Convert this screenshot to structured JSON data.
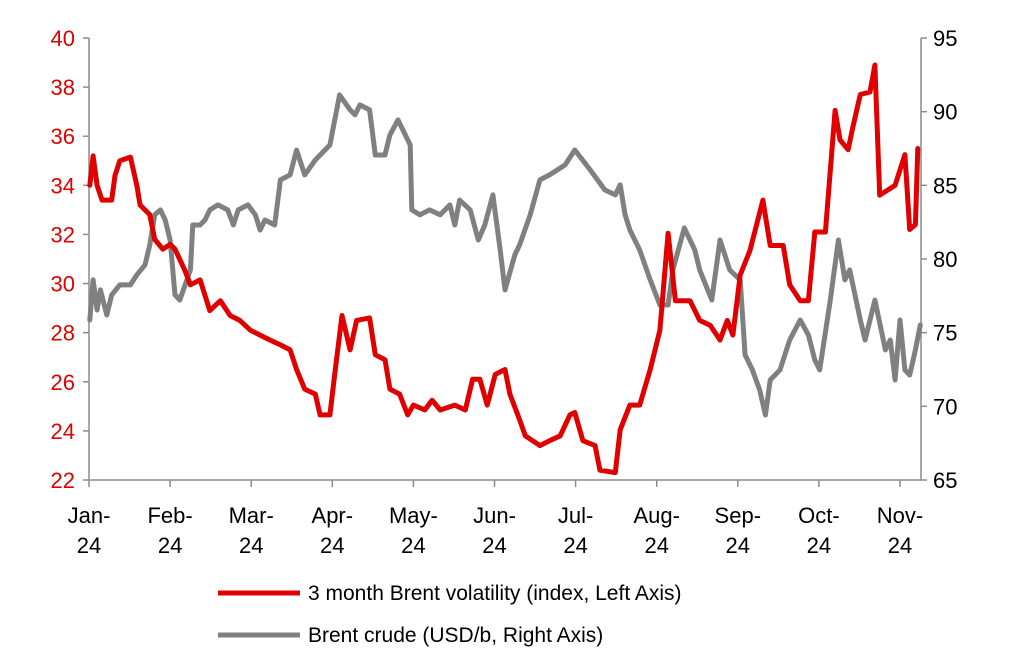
{
  "chart_data": {
    "type": "line",
    "title": "",
    "x_unit": "months since Jan-24",
    "x_tick_labels": [
      [
        "Jan-",
        "24"
      ],
      [
        "Feb-",
        "24"
      ],
      [
        "Mar-",
        "24"
      ],
      [
        "Apr-",
        "24"
      ],
      [
        "May-",
        "24"
      ],
      [
        "Jun-",
        "24"
      ],
      [
        "Jul-",
        "24"
      ],
      [
        "Aug-",
        "24"
      ],
      [
        "Sep-",
        "24"
      ],
      [
        "Oct-",
        "24"
      ],
      [
        "Nov-",
        "24"
      ]
    ],
    "y_left": {
      "range": [
        22,
        40
      ],
      "step": 2,
      "ticks": [
        "22",
        "24",
        "26",
        "28",
        "30",
        "32",
        "34",
        "36",
        "38",
        "40"
      ],
      "color": "#e00000"
    },
    "y_right": {
      "range": [
        65,
        95
      ],
      "step": 5,
      "ticks": [
        "65",
        "70",
        "75",
        "80",
        "85",
        "90",
        "95"
      ],
      "color": "#000000"
    },
    "grid": false,
    "legend_position": "bottom",
    "series": [
      {
        "name": "3 month Brent volatility (index, Left Axis)",
        "axis": "left",
        "color": "#e00000",
        "points": [
          [
            0.01,
            34.0
          ],
          [
            0.05,
            35.2
          ],
          [
            0.1,
            34.0
          ],
          [
            0.16,
            33.4
          ],
          [
            0.28,
            33.4
          ],
          [
            0.32,
            34.4
          ],
          [
            0.38,
            35.0
          ],
          [
            0.51,
            35.15
          ],
          [
            0.59,
            34.0
          ],
          [
            0.63,
            33.2
          ],
          [
            0.75,
            32.8
          ],
          [
            0.81,
            31.8
          ],
          [
            0.91,
            31.4
          ],
          [
            1.0,
            31.6
          ],
          [
            1.06,
            31.4
          ],
          [
            1.18,
            30.55
          ],
          [
            1.25,
            29.95
          ],
          [
            1.37,
            30.15
          ],
          [
            1.49,
            28.9
          ],
          [
            1.62,
            29.3
          ],
          [
            1.74,
            28.7
          ],
          [
            1.86,
            28.5
          ],
          [
            1.99,
            28.1
          ],
          [
            2.11,
            27.9
          ],
          [
            2.23,
            27.7
          ],
          [
            2.36,
            27.5
          ],
          [
            2.48,
            27.3
          ],
          [
            2.56,
            26.5
          ],
          [
            2.66,
            25.7
          ],
          [
            2.79,
            25.5
          ],
          [
            2.85,
            24.65
          ],
          [
            2.97,
            24.65
          ],
          [
            3.03,
            26.3
          ],
          [
            3.12,
            28.7
          ],
          [
            3.22,
            27.3
          ],
          [
            3.3,
            28.5
          ],
          [
            3.46,
            28.6
          ],
          [
            3.53,
            27.1
          ],
          [
            3.65,
            26.9
          ],
          [
            3.71,
            25.7
          ],
          [
            3.83,
            25.5
          ],
          [
            3.93,
            24.65
          ],
          [
            4.0,
            25.05
          ],
          [
            4.14,
            24.85
          ],
          [
            4.23,
            25.25
          ],
          [
            4.33,
            24.85
          ],
          [
            4.51,
            25.05
          ],
          [
            4.64,
            24.85
          ],
          [
            4.73,
            26.1
          ],
          [
            4.82,
            26.1
          ],
          [
            4.91,
            25.05
          ],
          [
            5.01,
            26.3
          ],
          [
            5.13,
            26.5
          ],
          [
            5.19,
            25.5
          ],
          [
            5.31,
            24.45
          ],
          [
            5.38,
            23.8
          ],
          [
            5.56,
            23.4
          ],
          [
            5.68,
            23.6
          ],
          [
            5.81,
            23.8
          ],
          [
            5.93,
            24.65
          ],
          [
            5.99,
            24.75
          ],
          [
            6.09,
            23.6
          ],
          [
            6.24,
            23.4
          ],
          [
            6.3,
            22.4
          ],
          [
            6.49,
            22.3
          ],
          [
            6.55,
            24.05
          ],
          [
            6.67,
            25.05
          ],
          [
            6.79,
            25.05
          ],
          [
            6.92,
            26.5
          ],
          [
            7.04,
            28.1
          ],
          [
            7.14,
            32.05
          ],
          [
            7.23,
            29.3
          ],
          [
            7.41,
            29.3
          ],
          [
            7.53,
            28.5
          ],
          [
            7.66,
            28.3
          ],
          [
            7.78,
            27.7
          ],
          [
            7.87,
            28.5
          ],
          [
            7.94,
            27.9
          ],
          [
            8.03,
            30.35
          ],
          [
            8.15,
            31.35
          ],
          [
            8.31,
            33.4
          ],
          [
            8.4,
            31.55
          ],
          [
            8.56,
            31.55
          ],
          [
            8.64,
            29.95
          ],
          [
            8.77,
            29.3
          ],
          [
            8.87,
            29.3
          ],
          [
            8.95,
            32.1
          ],
          [
            9.08,
            32.1
          ],
          [
            9.2,
            37.05
          ],
          [
            9.26,
            35.85
          ],
          [
            9.36,
            35.45
          ],
          [
            9.41,
            36.25
          ],
          [
            9.51,
            37.7
          ],
          [
            9.63,
            37.8
          ],
          [
            9.69,
            38.9
          ],
          [
            9.75,
            33.6
          ],
          [
            9.94,
            34.0
          ],
          [
            10.06,
            35.25
          ],
          [
            10.12,
            32.2
          ],
          [
            10.19,
            32.4
          ],
          [
            10.22,
            35.5
          ]
        ]
      },
      {
        "name": "Brent crude (USD/b, Right Axis)",
        "axis": "right",
        "color": "#808080",
        "points": [
          [
            0.01,
            75.86
          ],
          [
            0.05,
            78.58
          ],
          [
            0.1,
            76.54
          ],
          [
            0.14,
            77.9
          ],
          [
            0.22,
            76.2
          ],
          [
            0.28,
            77.56
          ],
          [
            0.38,
            78.24
          ],
          [
            0.51,
            78.24
          ],
          [
            0.59,
            78.92
          ],
          [
            0.69,
            79.6
          ],
          [
            0.75,
            80.95
          ],
          [
            0.81,
            83.0
          ],
          [
            0.88,
            83.33
          ],
          [
            0.94,
            82.65
          ],
          [
            1.0,
            81.29
          ],
          [
            1.06,
            77.56
          ],
          [
            1.12,
            77.22
          ],
          [
            1.25,
            79.26
          ],
          [
            1.28,
            82.31
          ],
          [
            1.37,
            82.31
          ],
          [
            1.43,
            82.65
          ],
          [
            1.49,
            83.33
          ],
          [
            1.59,
            83.67
          ],
          [
            1.71,
            83.33
          ],
          [
            1.78,
            82.31
          ],
          [
            1.84,
            83.33
          ],
          [
            1.96,
            83.67
          ],
          [
            2.05,
            83.0
          ],
          [
            2.11,
            81.97
          ],
          [
            2.17,
            82.65
          ],
          [
            2.29,
            82.31
          ],
          [
            2.36,
            85.37
          ],
          [
            2.48,
            85.71
          ],
          [
            2.56,
            87.4
          ],
          [
            2.66,
            85.71
          ],
          [
            2.79,
            86.72
          ],
          [
            2.91,
            87.4
          ],
          [
            2.97,
            87.74
          ],
          [
            3.09,
            91.14
          ],
          [
            3.22,
            90.12
          ],
          [
            3.28,
            89.78
          ],
          [
            3.34,
            90.46
          ],
          [
            3.46,
            90.12
          ],
          [
            3.53,
            87.06
          ],
          [
            3.65,
            87.06
          ],
          [
            3.71,
            88.42
          ],
          [
            3.81,
            89.44
          ],
          [
            3.96,
            87.74
          ],
          [
            3.98,
            83.33
          ],
          [
            4.08,
            83.0
          ],
          [
            4.2,
            83.33
          ],
          [
            4.33,
            83.0
          ],
          [
            4.45,
            83.67
          ],
          [
            4.51,
            82.31
          ],
          [
            4.57,
            84.0
          ],
          [
            4.7,
            83.33
          ],
          [
            4.8,
            81.29
          ],
          [
            4.88,
            82.31
          ],
          [
            4.98,
            84.35
          ],
          [
            5.07,
            80.61
          ],
          [
            5.13,
            77.9
          ],
          [
            5.25,
            80.27
          ],
          [
            5.31,
            80.95
          ],
          [
            5.44,
            83.0
          ],
          [
            5.56,
            85.37
          ],
          [
            5.68,
            85.71
          ],
          [
            5.87,
            86.39
          ],
          [
            5.99,
            87.4
          ],
          [
            6.18,
            86.05
          ],
          [
            6.36,
            84.69
          ],
          [
            6.49,
            84.35
          ],
          [
            6.55,
            85.03
          ],
          [
            6.61,
            83.0
          ],
          [
            6.67,
            81.97
          ],
          [
            6.79,
            80.61
          ],
          [
            6.92,
            78.58
          ],
          [
            7.04,
            76.88
          ],
          [
            7.14,
            76.88
          ],
          [
            7.2,
            79.26
          ],
          [
            7.34,
            82.11
          ],
          [
            7.47,
            80.61
          ],
          [
            7.53,
            79.26
          ],
          [
            7.68,
            77.22
          ],
          [
            7.78,
            81.29
          ],
          [
            7.9,
            79.26
          ],
          [
            8.03,
            78.58
          ],
          [
            8.09,
            73.49
          ],
          [
            8.18,
            72.47
          ],
          [
            8.27,
            71.11
          ],
          [
            8.34,
            69.41
          ],
          [
            8.4,
            71.79
          ],
          [
            8.52,
            72.47
          ],
          [
            8.64,
            74.5
          ],
          [
            8.77,
            75.86
          ],
          [
            8.87,
            74.84
          ],
          [
            8.95,
            73.15
          ],
          [
            9.01,
            72.47
          ],
          [
            9.14,
            77.22
          ],
          [
            9.24,
            81.29
          ],
          [
            9.32,
            78.58
          ],
          [
            9.38,
            79.26
          ],
          [
            9.51,
            75.86
          ],
          [
            9.57,
            74.5
          ],
          [
            9.69,
            77.22
          ],
          [
            9.82,
            73.83
          ],
          [
            9.88,
            74.5
          ],
          [
            9.94,
            71.79
          ],
          [
            10.0,
            75.86
          ],
          [
            10.06,
            72.47
          ],
          [
            10.12,
            72.13
          ],
          [
            10.19,
            73.83
          ],
          [
            10.25,
            75.52
          ]
        ]
      }
    ]
  }
}
